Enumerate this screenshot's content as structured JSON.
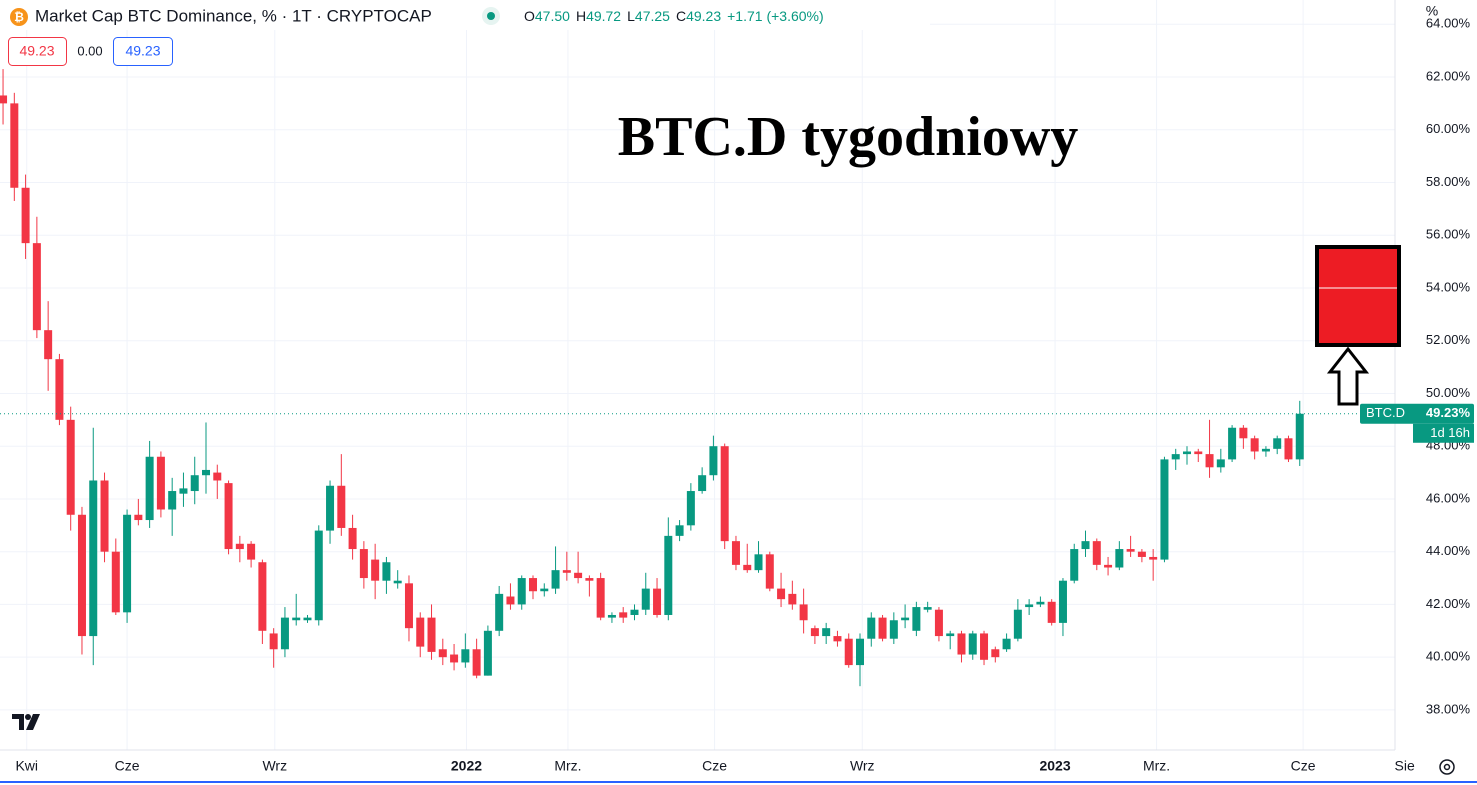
{
  "header": {
    "symbol": "Market Cap BTC Dominance, % · 1T · CRYPTOCAP",
    "ohlc": [
      {
        "key": "O",
        "value": "47.50"
      },
      {
        "key": "H",
        "value": "49.72"
      },
      {
        "key": "L",
        "value": "47.25"
      },
      {
        "key": "C",
        "value": "49.23"
      }
    ],
    "change": "+1.71 (+3.60%)",
    "sell": "49.23",
    "spread": "0.00",
    "buy": "49.23"
  },
  "chart_data": {
    "type": "candlestick",
    "annotation": "BTC.D tygodniowy",
    "y_unit": "%",
    "up_color": "#089981",
    "down_color": "#f23645",
    "open": [
      61.3,
      61.0,
      57.8,
      55.7,
      52.4,
      51.3,
      49.0,
      45.4,
      40.8,
      46.7,
      44.0,
      41.7,
      45.4,
      45.2,
      47.6,
      45.6,
      46.2,
      46.3,
      46.9,
      47.0,
      46.6,
      44.3,
      44.3,
      43.6,
      40.9,
      40.3,
      41.4,
      41.4,
      41.4,
      44.8,
      46.5,
      44.9,
      44.1,
      43.7,
      42.9,
      42.8,
      42.8,
      41.5,
      41.5,
      40.3,
      40.1,
      39.8,
      40.3,
      39.3,
      41.0,
      42.3,
      42.0,
      43.0,
      42.5,
      42.6,
      43.3,
      43.2,
      43.0,
      43.0,
      41.5,
      41.7,
      41.6,
      41.8,
      42.6,
      41.6,
      44.6,
      45.0,
      46.3,
      46.9,
      48.0,
      44.4,
      43.5,
      43.3,
      43.9,
      42.6,
      42.4,
      42.0,
      41.1,
      40.8,
      40.8,
      40.7,
      39.7,
      40.7,
      41.5,
      40.7,
      41.4,
      41.0,
      41.8,
      41.8,
      40.8,
      40.9,
      40.1,
      40.9,
      40.3,
      40.3,
      40.7,
      41.9,
      42.0,
      42.1,
      41.3,
      42.9,
      44.1,
      44.4,
      43.5,
      43.4,
      44.1,
      44.0,
      43.8,
      43.7,
      47.5,
      47.7,
      47.8,
      47.7,
      47.2,
      47.5,
      48.7,
      48.3,
      47.8,
      47.9,
      48.3,
      47.5
    ],
    "high": [
      62.3,
      61.4,
      58.3,
      56.7,
      53.5,
      51.5,
      49.5,
      45.7,
      48.7,
      47.0,
      44.5,
      45.6,
      46.0,
      48.2,
      47.8,
      46.8,
      47.0,
      47.6,
      48.9,
      47.3,
      46.7,
      44.6,
      44.4,
      43.7,
      41.1,
      41.9,
      42.4,
      41.6,
      45.0,
      46.7,
      47.7,
      45.4,
      44.4,
      44.3,
      43.8,
      43.3,
      43.1,
      41.7,
      42.0,
      40.7,
      40.5,
      40.9,
      40.7,
      41.2,
      42.7,
      42.8,
      43.1,
      43.1,
      42.8,
      44.2,
      44.0,
      44.0,
      43.1,
      43.2,
      41.7,
      41.9,
      42.0,
      43.2,
      43.0,
      45.3,
      45.2,
      46.6,
      47.2,
      48.4,
      48.1,
      44.6,
      44.3,
      44.4,
      44.0,
      43.2,
      42.9,
      42.6,
      41.2,
      41.3,
      41.0,
      40.9,
      40.9,
      41.7,
      41.6,
      41.7,
      42.0,
      42.1,
      42.1,
      41.9,
      41.0,
      41.0,
      41.0,
      41.0,
      40.4,
      40.9,
      42.2,
      42.2,
      42.3,
      42.2,
      43.0,
      44.3,
      44.8,
      44.5,
      43.8,
      44.4,
      44.6,
      44.1,
      44.1,
      47.6,
      47.9,
      48.0,
      47.9,
      49.0,
      47.9,
      48.8,
      48.8,
      48.4,
      48.0,
      48.4,
      48.4,
      49.72
    ],
    "low": [
      60.2,
      57.3,
      55.1,
      52.1,
      50.1,
      48.8,
      44.8,
      40.1,
      39.7,
      43.6,
      41.6,
      41.3,
      45.0,
      44.9,
      45.3,
      44.6,
      45.7,
      45.8,
      46.2,
      46.0,
      43.9,
      43.6,
      43.4,
      40.5,
      39.6,
      40.0,
      41.2,
      41.3,
      41.2,
      44.3,
      44.6,
      43.7,
      42.6,
      42.2,
      42.4,
      42.6,
      40.6,
      40.0,
      39.9,
      39.7,
      39.5,
      39.6,
      39.2,
      39.3,
      40.8,
      41.8,
      41.8,
      42.2,
      42.3,
      42.4,
      42.9,
      42.8,
      42.3,
      41.4,
      41.3,
      41.3,
      41.4,
      41.6,
      41.5,
      41.4,
      44.4,
      44.8,
      46.2,
      46.7,
      44.1,
      43.3,
      43.2,
      43.2,
      42.5,
      41.9,
      41.8,
      40.9,
      40.5,
      40.5,
      40.4,
      39.6,
      38.9,
      40.4,
      40.6,
      40.5,
      41.1,
      40.8,
      41.7,
      40.6,
      40.3,
      39.8,
      39.9,
      39.7,
      39.8,
      40.2,
      40.6,
      41.6,
      41.9,
      41.2,
      40.8,
      42.8,
      43.8,
      43.3,
      43.1,
      43.3,
      43.8,
      43.6,
      42.9,
      43.6,
      47.1,
      47.3,
      47.4,
      46.8,
      47.0,
      47.4,
      47.9,
      47.5,
      47.6,
      47.7,
      47.4,
      47.25
    ],
    "close": [
      61.0,
      57.8,
      55.7,
      52.4,
      51.3,
      49.0,
      45.4,
      40.8,
      46.7,
      44.0,
      41.7,
      45.4,
      45.2,
      47.6,
      45.6,
      46.3,
      46.4,
      46.9,
      47.1,
      46.7,
      44.1,
      44.1,
      43.7,
      41.0,
      40.3,
      41.5,
      41.5,
      41.5,
      44.8,
      46.5,
      44.9,
      44.1,
      43.0,
      42.9,
      43.6,
      42.9,
      41.1,
      40.4,
      40.2,
      40.0,
      39.8,
      40.3,
      39.3,
      41.0,
      42.4,
      42.0,
      43.0,
      42.5,
      42.6,
      43.3,
      43.2,
      43.0,
      42.9,
      41.5,
      41.6,
      41.5,
      41.8,
      42.6,
      41.6,
      44.6,
      45.0,
      46.3,
      46.9,
      48.0,
      44.4,
      43.5,
      43.3,
      43.9,
      42.6,
      42.2,
      42.0,
      41.4,
      40.8,
      41.1,
      40.6,
      39.7,
      40.7,
      41.5,
      40.7,
      41.4,
      41.5,
      41.9,
      41.9,
      40.8,
      40.9,
      40.1,
      40.9,
      39.9,
      40.0,
      40.7,
      41.8,
      42.0,
      42.1,
      41.3,
      42.9,
      44.1,
      44.4,
      43.5,
      43.4,
      44.1,
      44.0,
      43.8,
      43.7,
      47.5,
      47.7,
      47.8,
      47.7,
      47.2,
      47.5,
      48.7,
      48.3,
      47.8,
      47.9,
      48.3,
      47.5,
      49.23
    ],
    "last_price": {
      "name": "BTC.D",
      "label": "49.23%",
      "countdown": "1d 16h"
    },
    "ylim": [
      36.48,
      64.92
    ],
    "yticks": [
      {
        "value": 38,
        "label": "38.00%"
      },
      {
        "value": 40,
        "label": "40.00%"
      },
      {
        "value": 42,
        "label": "42.00%"
      },
      {
        "value": 44,
        "label": "44.00%"
      },
      {
        "value": 46,
        "label": "46.00%"
      },
      {
        "value": 48,
        "label": "48.00%"
      },
      {
        "value": 50,
        "label": "50.00%"
      },
      {
        "value": 52,
        "label": "52.00%"
      },
      {
        "value": 54,
        "label": "54.00%"
      },
      {
        "value": 56,
        "label": "56.00%"
      },
      {
        "value": 58,
        "label": "58.00%"
      },
      {
        "value": 60,
        "label": "60.00%"
      },
      {
        "value": 62,
        "label": "62.00%"
      },
      {
        "value": 64,
        "label": "64.00%"
      }
    ],
    "xlim": [
      -0.27,
      124.6
    ],
    "xticks": [
      {
        "value": 2.1,
        "label": "Kwi"
      },
      {
        "value": 11.0,
        "label": "Cze"
      },
      {
        "value": 24.1,
        "label": "Wrz"
      },
      {
        "value": 41.1,
        "label": "2022"
      },
      {
        "value": 50.1,
        "label": "Mrz."
      },
      {
        "value": 63.1,
        "label": "Cze"
      },
      {
        "value": 76.2,
        "label": "Wrz"
      },
      {
        "value": 93.3,
        "label": "2023"
      },
      {
        "value": 102.3,
        "label": "Mrz."
      },
      {
        "value": 115.3,
        "label": "Cze"
      },
      {
        "value": 124.3,
        "label": "Sie"
      }
    ],
    "grid": true
  }
}
